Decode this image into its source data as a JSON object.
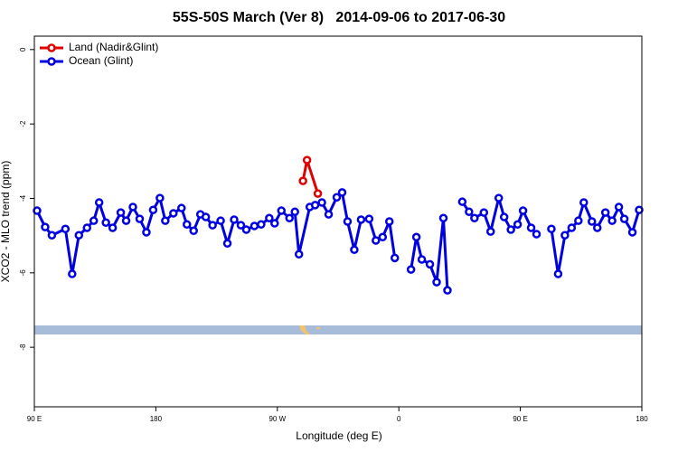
{
  "chart_data": {
    "type": "line",
    "title": "55S-50S March (Ver 8)   2014-09-06 to 2017-06-30",
    "x_label": "Longitude (deg E)",
    "y_label": "XCO2 - MLO trend (ppm)",
    "xlim": [
      90,
      540
    ],
    "ylim": [
      -9.6,
      0.36
    ],
    "xticks": [
      {
        "value": 90,
        "label": "90 E"
      },
      180,
      {
        "value": 270,
        "label": "90 W"
      },
      {
        "value": 360,
        "label": "0"
      },
      {
        "value": 450,
        "label": "90 E"
      },
      {
        "value": 540,
        "label": "180"
      }
    ],
    "yticks": [
      0,
      -2,
      -4,
      -6,
      -8
    ],
    "grid": false,
    "legend": "top-left",
    "series": [
      {
        "name": "Land (Nadir&Glint)",
        "color": "#e00000",
        "x": [
          289,
          292,
          300
        ],
        "values": [
          -3.53,
          -2.97,
          -3.87
        ]
      },
      {
        "name": "Ocean (Glint)",
        "color": "#0000e0",
        "x": [
          92,
          98,
          103,
          113,
          118,
          123,
          129,
          134,
          138,
          143,
          148,
          154,
          158,
          163,
          168,
          173,
          178,
          183,
          187,
          193,
          199,
          203,
          208,
          213,
          217,
          222,
          228,
          233,
          238,
          243,
          247,
          253,
          258,
          264,
          268,
          273,
          279,
          283,
          286,
          294,
          298,
          303,
          308,
          314,
          318,
          322,
          327,
          332,
          338,
          343,
          348,
          353,
          357,
          null,
          369,
          373,
          377,
          383,
          388,
          393,
          396,
          null,
          407,
          412,
          416,
          423,
          428,
          434,
          438,
          443,
          448,
          452,
          458,
          462,
          null,
          473,
          478,
          483,
          488,
          493,
          497,
          503,
          507,
          513,
          518,
          523,
          527,
          533,
          538
        ],
        "values": [
          -4.33,
          -4.77,
          -4.99,
          -4.82,
          -6.03,
          -4.99,
          -4.79,
          -4.6,
          -4.11,
          -4.65,
          -4.79,
          -4.38,
          -4.6,
          -4.23,
          -4.55,
          -4.91,
          -4.31,
          -3.99,
          -4.6,
          -4.4,
          -4.26,
          -4.7,
          -4.87,
          -4.43,
          -4.5,
          -4.72,
          -4.6,
          -5.21,
          -4.57,
          -4.72,
          -4.84,
          -4.74,
          -4.7,
          -4.53,
          -4.67,
          -4.33,
          -4.53,
          -4.36,
          -5.5,
          -4.23,
          -4.18,
          -4.11,
          -4.43,
          -3.97,
          -3.84,
          -4.62,
          -5.38,
          -4.57,
          -4.55,
          -5.13,
          -5.04,
          -4.62,
          -5.6,
          null,
          -5.91,
          -5.04,
          -5.64,
          -5.77,
          -6.25,
          -4.53,
          -6.47,
          null,
          -4.09,
          -4.36,
          -4.53,
          -4.38,
          -4.89,
          -3.99,
          -4.5,
          -4.84,
          -4.7,
          -4.33,
          -4.79,
          -4.96,
          null,
          -4.82,
          -6.03,
          -4.99,
          -4.79,
          -4.6,
          -4.11,
          -4.62,
          -4.79,
          -4.38,
          -4.6,
          -4.23,
          -4.55,
          -4.91,
          -4.31
        ]
      }
    ]
  }
}
